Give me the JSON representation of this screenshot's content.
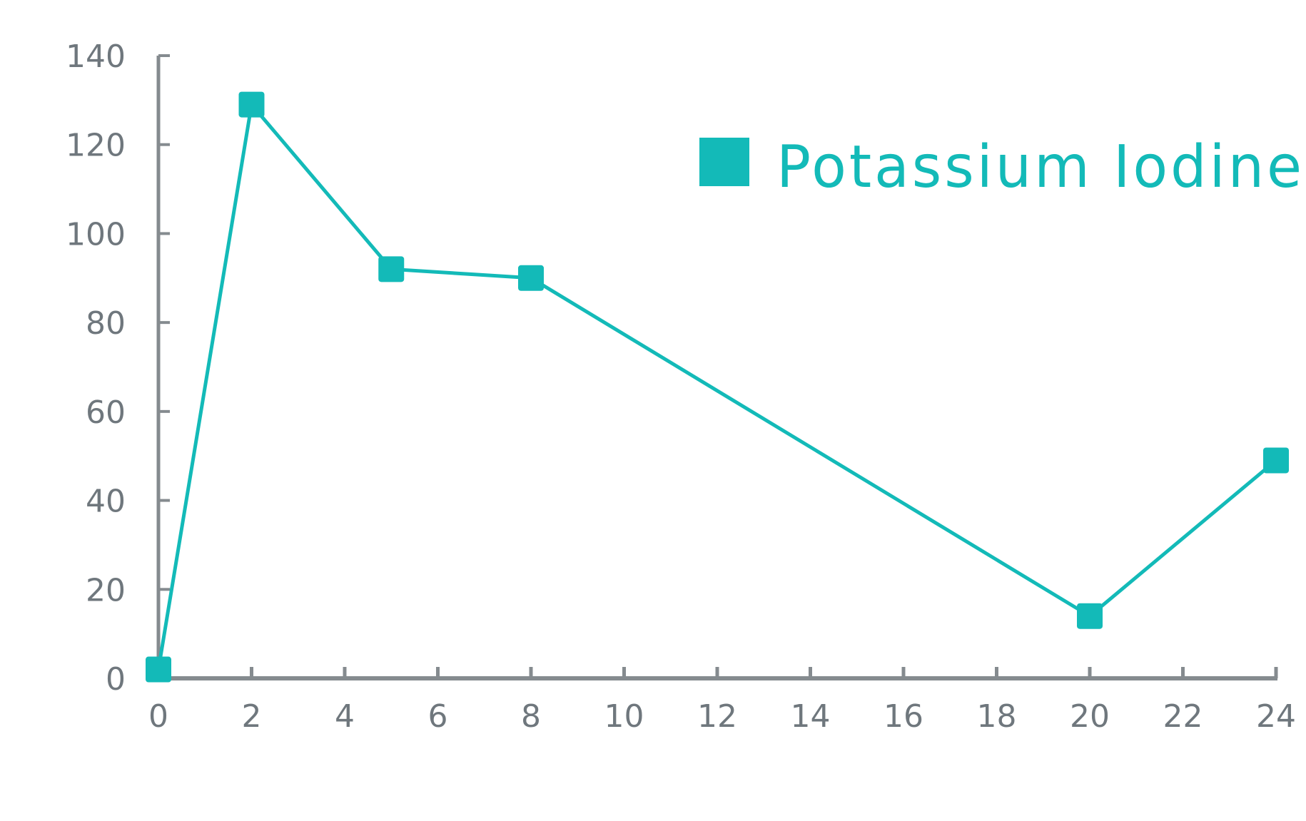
{
  "chart_data": {
    "type": "line",
    "title": "",
    "xlabel": "",
    "ylabel": "",
    "x": [
      0,
      2,
      5,
      8,
      20,
      24
    ],
    "x_ticks": [
      "0",
      "2",
      "4",
      "6",
      "8",
      "10",
      "12",
      "14",
      "16",
      "18",
      "20",
      "22",
      "24"
    ],
    "y_ticks": [
      "0",
      "20",
      "40",
      "60",
      "80",
      "100",
      "120",
      "140"
    ],
    "xlim": [
      0,
      24
    ],
    "ylim": [
      0,
      140
    ],
    "grid": false,
    "legend_position": "top-right",
    "series": [
      {
        "name": "Potassium Iodine",
        "values": [
          2,
          129,
          92,
          90,
          14,
          49
        ],
        "color": "#13bab8",
        "marker": "square"
      }
    ],
    "axis_color": "#858b8f"
  }
}
